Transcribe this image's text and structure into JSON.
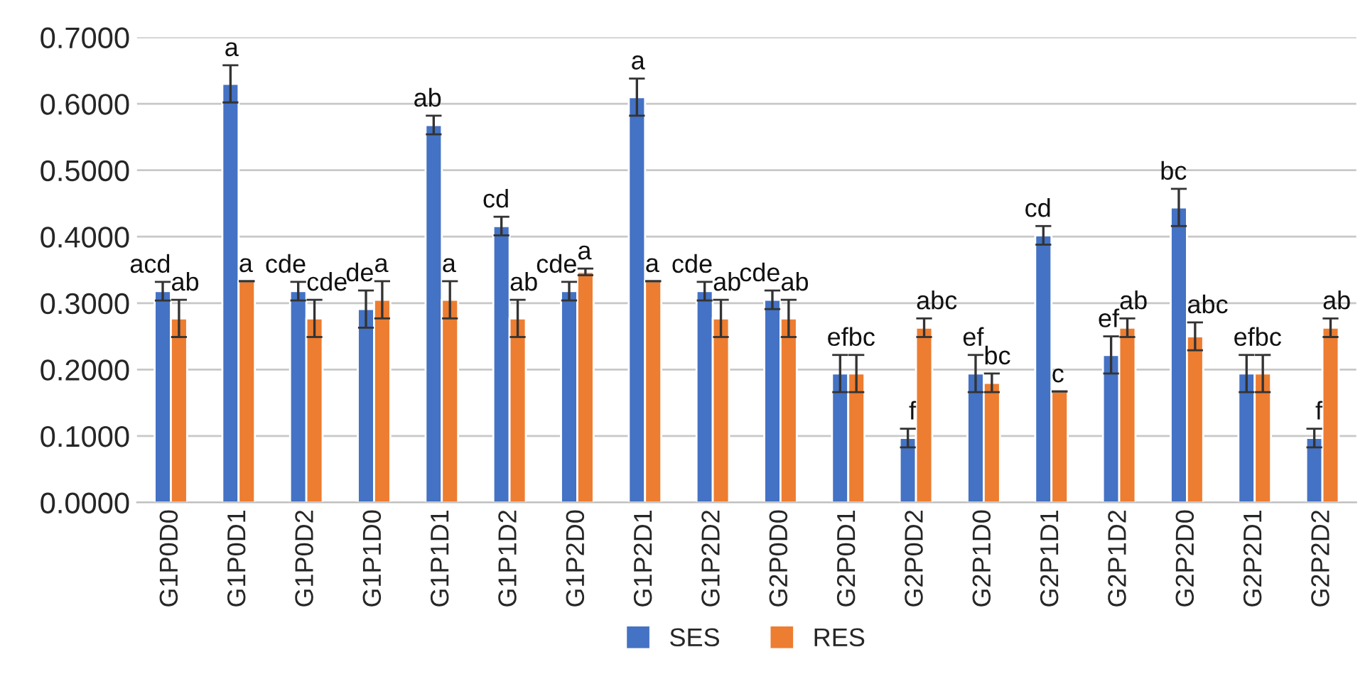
{
  "chart_data": {
    "type": "bar",
    "categories": [
      "G1P0D0",
      "G1P0D1",
      "G1P0D2",
      "G1P1D0",
      "G1P1D1",
      "G1P1D2",
      "G1P2D0",
      "G1P2D1",
      "G1P2D2",
      "G2P0D0",
      "G2P0D1",
      "G2P0D2",
      "G2P1D0",
      "G2P1D1",
      "G2P1D2",
      "G2P2D0",
      "G2P2D1",
      "G2P2D2"
    ],
    "series": [
      {
        "name": "SES",
        "color": "#4472c4",
        "values": [
          0.318,
          0.63,
          0.318,
          0.291,
          0.568,
          0.416,
          0.318,
          0.61,
          0.318,
          0.305,
          0.194,
          0.097,
          0.194,
          0.402,
          0.222,
          0.444,
          0.194,
          0.097
        ],
        "errors": [
          0.014,
          0.028,
          0.014,
          0.028,
          0.014,
          0.014,
          0.014,
          0.028,
          0.014,
          0.014,
          0.028,
          0.014,
          0.028,
          0.014,
          0.028,
          0.028,
          0.028,
          0.014
        ],
        "value_labels": [
          "acd",
          "a",
          "cde",
          "de",
          "ab",
          "cd",
          "cde",
          "a",
          "cde",
          "cde",
          "ef",
          "f",
          "ef",
          "cd",
          "ef",
          "bc",
          "ef",
          "f"
        ]
      },
      {
        "name": "RES",
        "color": "#ed7d31",
        "values": [
          0.277,
          0.333,
          0.277,
          0.305,
          0.305,
          0.277,
          0.347,
          0.333,
          0.277,
          0.277,
          0.194,
          0.263,
          0.18,
          0.167,
          0.263,
          0.25,
          0.194,
          0.263
        ],
        "errors": [
          0.028,
          0,
          0.028,
          0.028,
          0.028,
          0.028,
          0.005,
          0,
          0.028,
          0.028,
          0.028,
          0.014,
          0.014,
          0,
          0.014,
          0.021,
          0.028,
          0.014
        ],
        "value_labels": [
          "ab",
          "a",
          "cde",
          "a",
          "a",
          "ab",
          "a",
          "a",
          "ab",
          "ab",
          "bc",
          "abc",
          "bc",
          "c",
          "ab",
          "abc",
          "bc",
          "ab"
        ]
      }
    ],
    "ylim": [
      0,
      0.7
    ],
    "yticks": [
      {
        "value": 0,
        "label": "0.0000"
      },
      {
        "value": 0.1,
        "label": "0.1000"
      },
      {
        "value": 0.2,
        "label": "0.2000"
      },
      {
        "value": 0.3,
        "label": "0.3000"
      },
      {
        "value": 0.4,
        "label": "0.4000"
      },
      {
        "value": 0.5,
        "label": "0.5000"
      },
      {
        "value": 0.6,
        "label": "0.6000"
      },
      {
        "value": 0.7,
        "label": "0.7000"
      }
    ],
    "grid": "y",
    "legend": "bottom"
  }
}
